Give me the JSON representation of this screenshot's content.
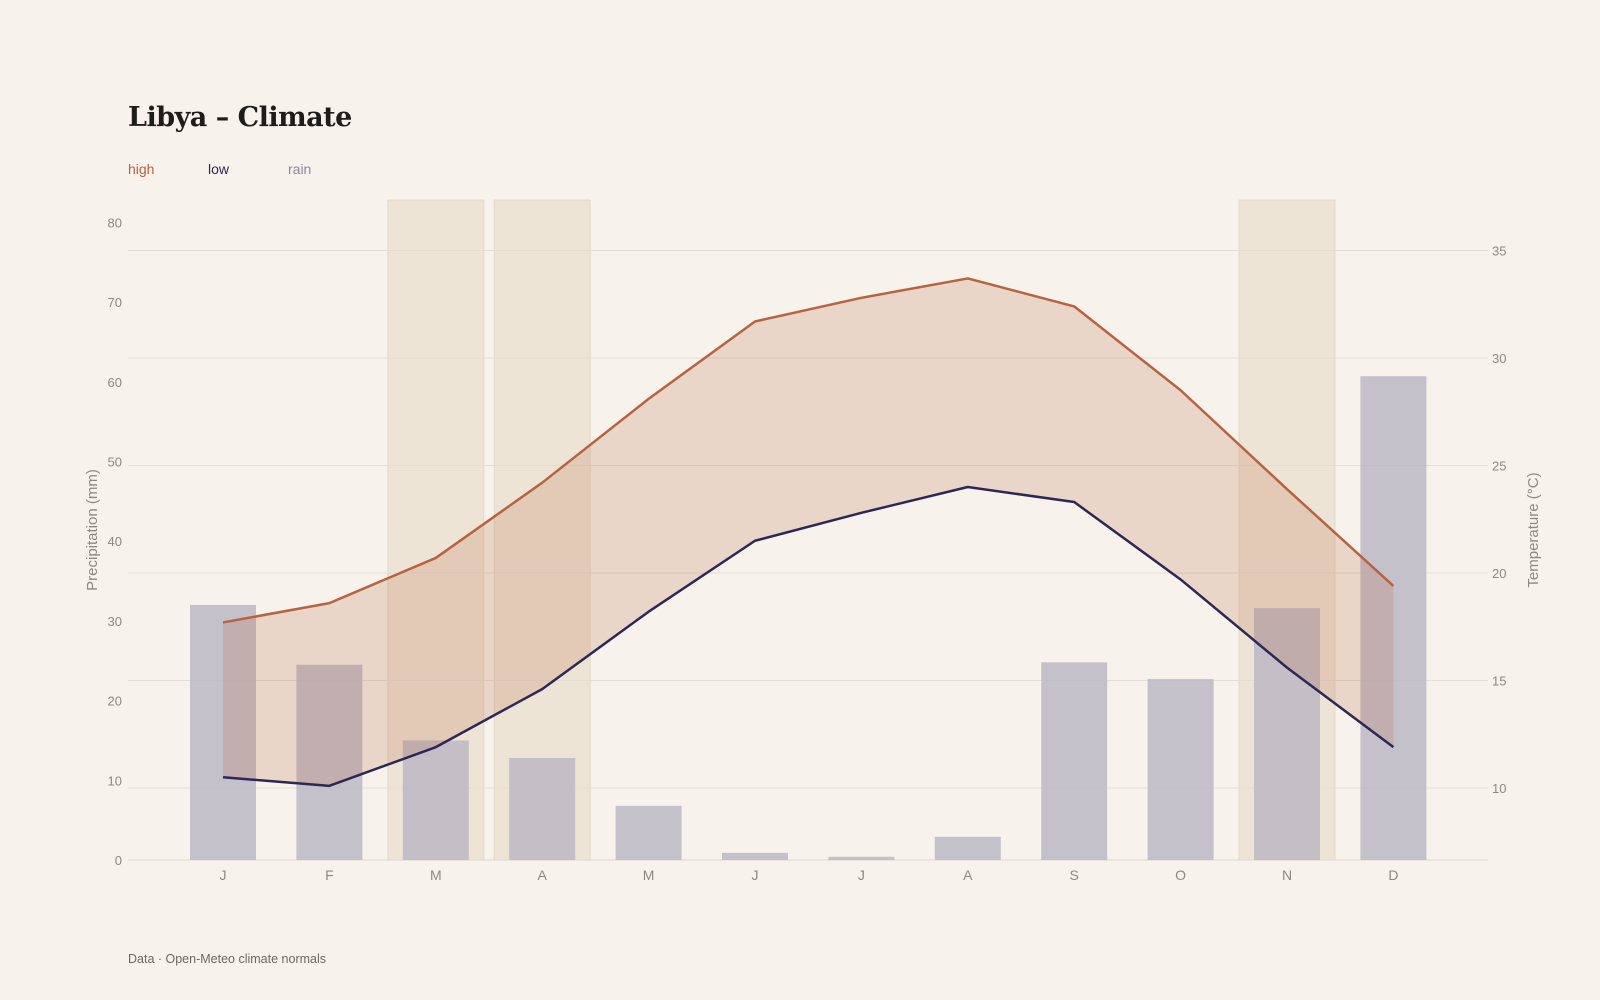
{
  "page": {
    "title": "Libya – Climate",
    "footer": "Data · Open-Meteo climate normals"
  },
  "legend": [
    {
      "label": "high",
      "color": "#b8623f"
    },
    {
      "label": "low",
      "color": "#2b2857"
    },
    {
      "label": "rain",
      "color": "#8a88a0"
    }
  ],
  "chart_data": {
    "type": "bar+line",
    "categories": [
      "J",
      "F",
      "M",
      "A",
      "M",
      "J",
      "J",
      "A",
      "S",
      "O",
      "N",
      "D"
    ],
    "series": [
      {
        "name": "rain",
        "axis": "left",
        "kind": "bar",
        "color": "#bcb9c4",
        "values": [
          32,
          24.5,
          15,
          12.8,
          6.8,
          0.9,
          0.4,
          2.9,
          24.8,
          22.7,
          31.6,
          60.7
        ]
      },
      {
        "name": "high",
        "axis": "right",
        "kind": "line",
        "color": "#b8623f",
        "values": [
          17.7,
          18.6,
          20.7,
          24.2,
          28.1,
          31.7,
          32.8,
          33.7,
          32.4,
          28.5,
          23.9,
          19.4
        ]
      },
      {
        "name": "low",
        "axis": "right",
        "kind": "line",
        "color": "#2b2857",
        "values": [
          10.5,
          10.1,
          11.9,
          14.6,
          18.2,
          21.5,
          22.8,
          24.0,
          23.3,
          19.7,
          15.6,
          11.9
        ]
      }
    ],
    "band": {
      "between": [
        "low",
        "high"
      ],
      "color": "#b8623f"
    },
    "highlighted_months": [
      2,
      3,
      10
    ],
    "y_left": {
      "label": "Precipitation (mm)",
      "ticks": [
        0,
        10,
        20,
        30,
        40,
        50,
        60,
        70,
        80
      ],
      "lim": [
        0,
        80
      ]
    },
    "y_right": {
      "label": "Temperature (°C)",
      "ticks": [
        10,
        15,
        20,
        25,
        30,
        35
      ]
    },
    "grid": true
  }
}
